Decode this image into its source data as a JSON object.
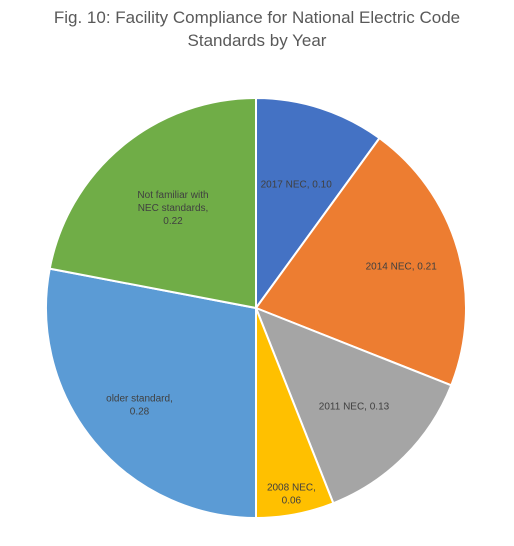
{
  "chart_data": {
    "type": "pie",
    "title_lines": [
      "Fig. 10: Facility Compliance for National Electric Code",
      "Standards by Year"
    ],
    "slices": [
      {
        "name": "2017 NEC",
        "value": 0.1,
        "color": "#4472C4",
        "label_lines": [
          "2017 NEC, 0.10"
        ]
      },
      {
        "name": "2014 NEC",
        "value": 0.21,
        "color": "#ED7D31",
        "label_lines": [
          "2014 NEC, 0.21"
        ]
      },
      {
        "name": "2011 NEC",
        "value": 0.13,
        "color": "#A5A5A5",
        "label_lines": [
          "2011 NEC, 0.13"
        ]
      },
      {
        "name": "2008 NEC",
        "value": 0.06,
        "color": "#FFC000",
        "label_lines": [
          "2008 NEC,",
          "0.06"
        ]
      },
      {
        "name": "older standard",
        "value": 0.28,
        "color": "#5B9BD5",
        "label_lines": [
          "older standard,",
          "0.28"
        ]
      },
      {
        "name": "Not familiar with NEC standards",
        "value": 0.22,
        "color": "#70AD47",
        "label_lines": [
          "Not familiar with",
          "NEC standards,",
          "0.22"
        ]
      }
    ],
    "start_angle": "12 o'clock",
    "direction": "clockwise",
    "legend": "none",
    "data_labels": "inside"
  }
}
